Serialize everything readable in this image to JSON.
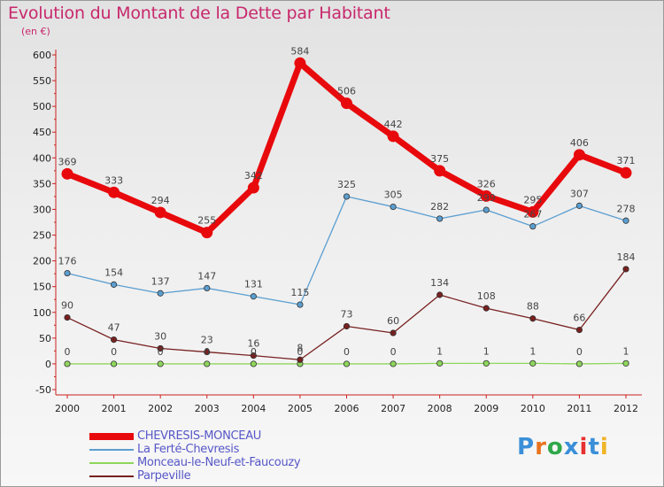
{
  "title": "Evolution du Montant de la Dette par Habitant",
  "subtitle": "(en €)",
  "logo": {
    "letters": [
      "P",
      "r",
      "o",
      "x",
      "i",
      "t",
      "i"
    ],
    "colors": [
      "#3b8fd8",
      "#e8741e",
      "#2fa84a",
      "#3b8fd8",
      "#e83030",
      "#3b8fd8",
      "#f0b428"
    ]
  },
  "chart_data": {
    "type": "line",
    "categories": [
      "2000",
      "2001",
      "2002",
      "2003",
      "2004",
      "2005",
      "2006",
      "2007",
      "2008",
      "2009",
      "2010",
      "2011",
      "2012"
    ],
    "ylim": [
      -50,
      600
    ],
    "yticks": [
      -50,
      0,
      50,
      100,
      150,
      200,
      250,
      300,
      350,
      400,
      450,
      500,
      550,
      600
    ],
    "grid": false,
    "legend_position": "bottom-left",
    "series": [
      {
        "name": "CHEVRESIS-MONCEAU",
        "color": "#e8090c",
        "values": [
          369,
          333,
          294,
          255,
          342,
          584,
          506,
          442,
          375,
          326,
          295,
          406,
          371
        ],
        "labels": [
          "369",
          "333",
          "294",
          "255",
          "342",
          "584",
          "506",
          "442",
          "375",
          "326",
          "295",
          "406",
          "371"
        ]
      },
      {
        "name": "La Ferté-Chevresis",
        "color": "#5b9ed0",
        "values": [
          176,
          154,
          137,
          147,
          131,
          115,
          325,
          305,
          282,
          299,
          267,
          307,
          278
        ],
        "labels": [
          "176",
          "154",
          "137",
          "147",
          "131",
          "115",
          "325",
          "305",
          "282",
          "299",
          "267",
          "307",
          "278"
        ]
      },
      {
        "name": "Monceau-le-Neuf-et-Faucouzy",
        "color": "#8ed65c",
        "values": [
          0,
          0,
          0,
          0,
          0,
          0,
          0,
          0,
          1,
          1,
          1,
          0,
          1
        ],
        "labels": [
          "0",
          "0",
          "0",
          "0",
          "0",
          "0",
          "0",
          "0",
          "1",
          "1",
          "1",
          "0",
          "1"
        ]
      },
      {
        "name": "Parpeville",
        "color": "#782020",
        "values": [
          90,
          47,
          30,
          23,
          16,
          8,
          73,
          60,
          134,
          108,
          88,
          66,
          184
        ],
        "labels": [
          "90",
          "47",
          "30",
          "23",
          "16",
          "8",
          "73",
          "60",
          "134",
          "108",
          "88",
          "66",
          "184"
        ]
      }
    ]
  }
}
